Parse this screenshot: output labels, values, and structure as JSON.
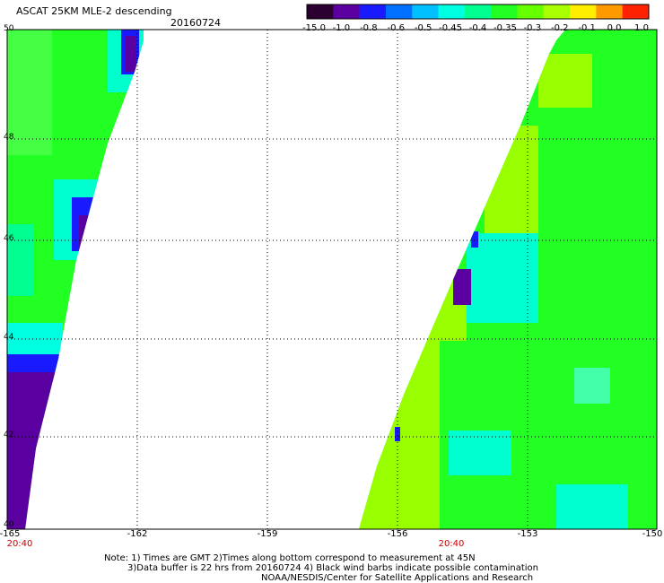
{
  "header": {
    "title": "ASCAT 25KM MLE-2 descending",
    "date": "20160724"
  },
  "colorbar": {
    "ticks": [
      "-15.0",
      "-1.0",
      "-0.8",
      "-0.6",
      "-0.5",
      "-0.45",
      "-0.4",
      "-0.35",
      "-0.3",
      "-0.2",
      "-0.1",
      "0.0",
      "1.0"
    ],
    "colors": [
      "#2b0030",
      "#5a00a0",
      "#1a1aff",
      "#0070ff",
      "#00c0ff",
      "#00ffe0",
      "#00ff90",
      "#22ff22",
      "#66ff00",
      "#aaff00",
      "#ffee00",
      "#ff9900",
      "#ff2200"
    ]
  },
  "map": {
    "lat_labels": [
      "50",
      "48",
      "46",
      "44",
      "42",
      "40"
    ],
    "lon_labels": [
      "-165",
      "-162",
      "-159",
      "-156",
      "-153",
      "-150"
    ],
    "time_labels": [
      "20:40",
      "20:40"
    ]
  },
  "footer": {
    "line1": "Note: 1) Times are GMT 2)Times along bottom correspond to measurement at 45N",
    "line2": "3)Data buffer is 22 hrs from 20160724 4) Black wind barbs indicate possible contamination",
    "line3": "NOAA/NESDIS/Center for Satellite Applications and Research"
  }
}
